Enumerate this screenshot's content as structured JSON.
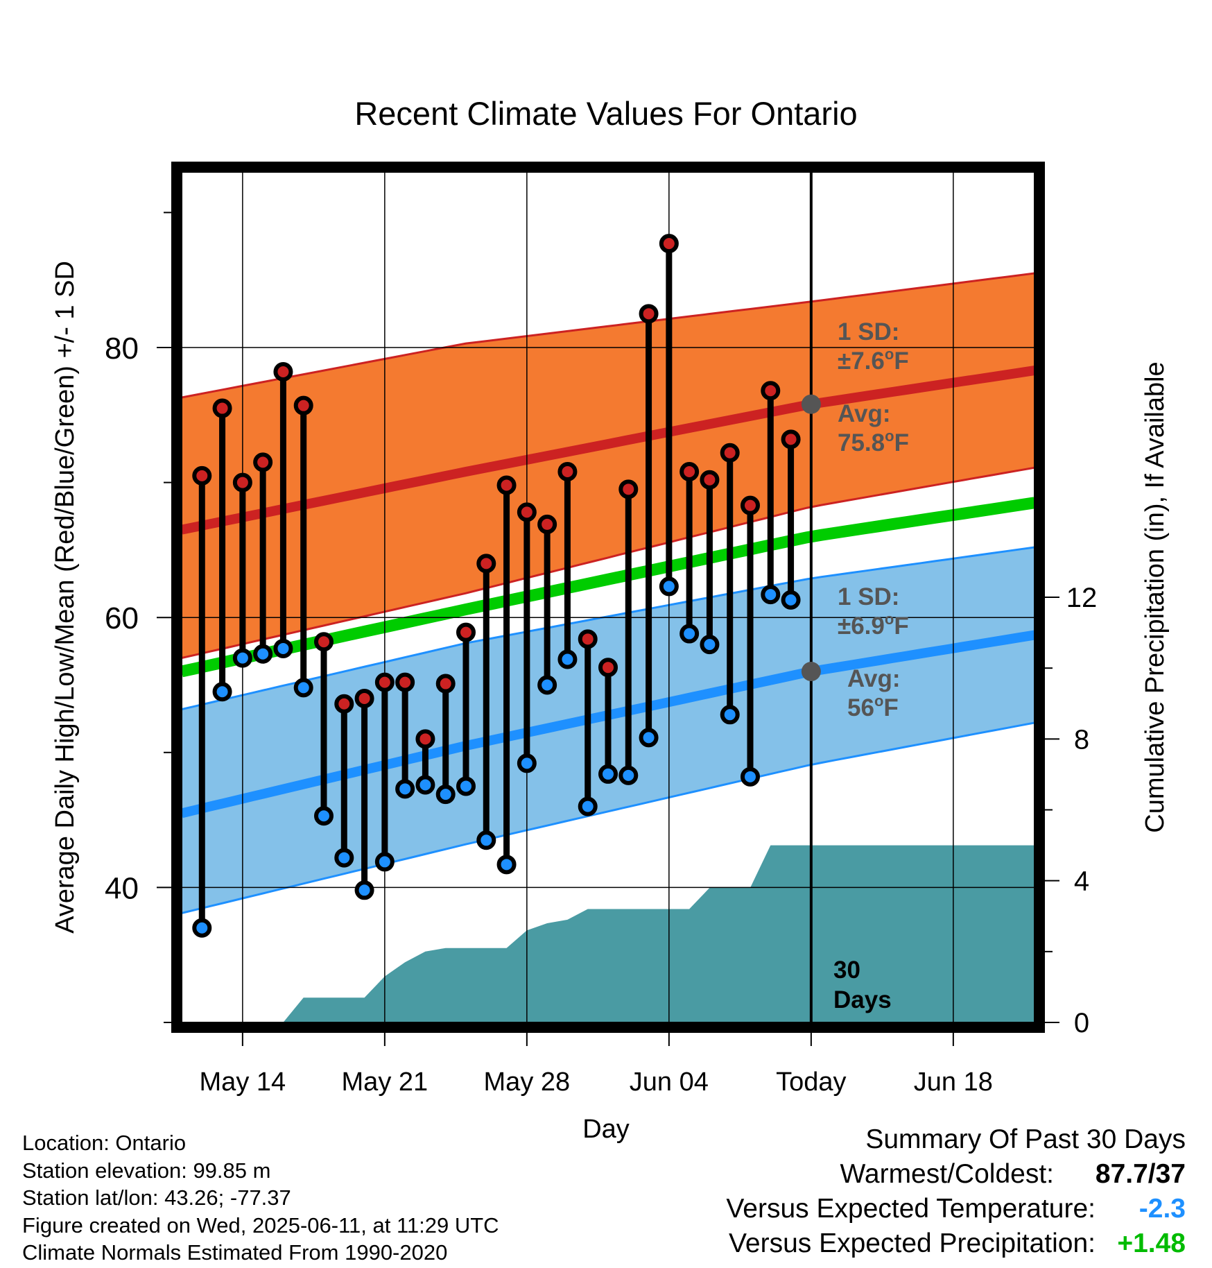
{
  "chart_data": {
    "type": "line",
    "title": "Recent Climate Values For Ontario",
    "xlabel": "Day",
    "ylabel": "Average Daily High/Low/Mean (Red/Blue/Green) +/- 1 SD",
    "y2label": "Cumulative Precipitation (in), If Available",
    "ylim": [
      30,
      93
    ],
    "y2lim": [
      0,
      24
    ],
    "yticks": [
      40,
      60,
      80
    ],
    "y2ticks": [
      0,
      4,
      8,
      12
    ],
    "x_range": [
      "2025-05-11",
      "2025-06-22"
    ],
    "x_ticks": [
      {
        "date": "2025-05-14",
        "label": "May 14"
      },
      {
        "date": "2025-05-21",
        "label": "May 21"
      },
      {
        "date": "2025-05-28",
        "label": "May 28"
      },
      {
        "date": "2025-06-04",
        "label": "Jun 04"
      },
      {
        "date": "2025-06-11",
        "label": "Today"
      },
      {
        "date": "2025-06-18",
        "label": "Jun 18"
      }
    ],
    "today": "2025-06-11",
    "today_label": "30 Days",
    "daily": [
      {
        "date": "2025-05-12",
        "high": 70.5,
        "low": 37.0
      },
      {
        "date": "2025-05-13",
        "high": 75.5,
        "low": 54.5
      },
      {
        "date": "2025-05-14",
        "high": 70.0,
        "low": 57.0
      },
      {
        "date": "2025-05-15",
        "high": 71.5,
        "low": 57.3
      },
      {
        "date": "2025-05-16",
        "high": 78.2,
        "low": 57.7
      },
      {
        "date": "2025-05-17",
        "high": 75.7,
        "low": 54.8
      },
      {
        "date": "2025-05-18",
        "high": 58.2,
        "low": 45.3
      },
      {
        "date": "2025-05-19",
        "high": 53.6,
        "low": 42.2
      },
      {
        "date": "2025-05-20",
        "high": 54.0,
        "low": 39.8
      },
      {
        "date": "2025-05-21",
        "high": 55.2,
        "low": 41.9
      },
      {
        "date": "2025-05-22",
        "high": 55.2,
        "low": 47.3
      },
      {
        "date": "2025-05-23",
        "high": 51.0,
        "low": 47.6
      },
      {
        "date": "2025-05-24",
        "high": 55.1,
        "low": 46.9
      },
      {
        "date": "2025-05-25",
        "high": 58.9,
        "low": 47.5
      },
      {
        "date": "2025-05-26",
        "high": 64.0,
        "low": 43.5
      },
      {
        "date": "2025-05-27",
        "high": 69.8,
        "low": 41.7
      },
      {
        "date": "2025-05-28",
        "high": 67.8,
        "low": 49.2
      },
      {
        "date": "2025-05-29",
        "high": 66.9,
        "low": 55.0
      },
      {
        "date": "2025-05-30",
        "high": 70.8,
        "low": 56.9
      },
      {
        "date": "2025-05-31",
        "high": 58.4,
        "low": 46.0
      },
      {
        "date": "2025-06-01",
        "high": 56.3,
        "low": 48.4
      },
      {
        "date": "2025-06-02",
        "high": 69.5,
        "low": 48.3
      },
      {
        "date": "2025-06-03",
        "high": 82.5,
        "low": 51.1
      },
      {
        "date": "2025-06-04",
        "high": 87.7,
        "low": 62.3
      },
      {
        "date": "2025-06-05",
        "high": 70.8,
        "low": 58.8
      },
      {
        "date": "2025-06-06",
        "high": 70.2,
        "low": 58.0
      },
      {
        "date": "2025-06-07",
        "high": 72.2,
        "low": 52.8
      },
      {
        "date": "2025-06-08",
        "high": 68.3,
        "low": 48.2
      },
      {
        "date": "2025-06-09",
        "high": 76.8,
        "low": 61.7
      },
      {
        "date": "2025-06-10",
        "high": 73.2,
        "low": 61.3
      }
    ],
    "normals": {
      "dates": [
        "2025-05-11",
        "2025-05-25",
        "2025-06-11",
        "2025-06-22"
      ],
      "high_mean": [
        66.5,
        70.8,
        75.8,
        78.3
      ],
      "high_upper": [
        76.3,
        80.3,
        83.4,
        85.5
      ],
      "high_lower": [
        57.0,
        61.8,
        68.2,
        71.1
      ],
      "low_mean": [
        45.5,
        50.5,
        56.0,
        58.7
      ],
      "low_upper": [
        53.2,
        58.1,
        62.9,
        65.2
      ],
      "low_lower": [
        38.1,
        43.2,
        49.1,
        52.2
      ],
      "avg_mean": [
        56.0,
        60.6,
        66.0,
        68.5
      ]
    },
    "precip_cumulative": {
      "dates": [
        "2025-05-16",
        "2025-05-17",
        "2025-05-18",
        "2025-05-19",
        "2025-05-20",
        "2025-05-21",
        "2025-05-22",
        "2025-05-23",
        "2025-05-24",
        "2025-05-25",
        "2025-05-26",
        "2025-05-27",
        "2025-05-28",
        "2025-05-29",
        "2025-05-30",
        "2025-05-31",
        "2025-06-01",
        "2025-06-02",
        "2025-06-03",
        "2025-06-04",
        "2025-06-05",
        "2025-06-06",
        "2025-06-07",
        "2025-06-08",
        "2025-06-09",
        "2025-06-10",
        "2025-06-11",
        "2025-06-22"
      ],
      "values": [
        0.0,
        0.7,
        0.7,
        0.7,
        0.7,
        1.3,
        1.7,
        2.0,
        2.1,
        2.1,
        2.1,
        2.1,
        2.6,
        2.8,
        2.9,
        3.2,
        3.2,
        3.2,
        3.2,
        3.2,
        3.2,
        3.8,
        3.8,
        3.8,
        5.0,
        5.0,
        5.0,
        5.0
      ]
    },
    "annotations": {
      "high_sd_label": "1 SD:",
      "high_sd_value": "±7.6",
      "high_avg_label": "Avg:",
      "high_avg_value": "75.8",
      "low_sd_label": "1 SD:",
      "low_sd_value": "±6.9",
      "low_avg_label": "Avg:",
      "low_avg_value": "56",
      "degree_unit": "F",
      "degree_sup": "o",
      "today_days_number": "30",
      "today_days_word": "Days"
    },
    "colors": {
      "high_band": "#f47a30",
      "high_line": "#cc2222",
      "low_band": "#84c1e9",
      "low_line": "#1e90ff",
      "mean_line": "#00cc00",
      "precip": "#4a9ba3",
      "high_marker": "#cc2222",
      "low_marker": "#1e90ff",
      "annotation": "#555555"
    }
  },
  "footer": {
    "location": "Location: Ontario",
    "elevation": "Station elevation: 99.85 m",
    "latlon": "Station lat/lon: 43.26; -77.37",
    "created": "Figure created on Wed, 2025-06-11, at 11:29 UTC",
    "normals": "Climate Normals Estimated From 1990-2020"
  },
  "summary": {
    "title": "Summary Of Past 30 Days",
    "warmest_label": "Warmest/Coldest:",
    "warmest_value": "87.7/37",
    "temp_label": "Versus Expected Temperature:",
    "temp_value": "-2.3",
    "temp_color": "#1e90ff",
    "precip_label": "Versus Expected Precipitation:",
    "precip_value": "+1.48",
    "precip_color": "#00bb00"
  }
}
